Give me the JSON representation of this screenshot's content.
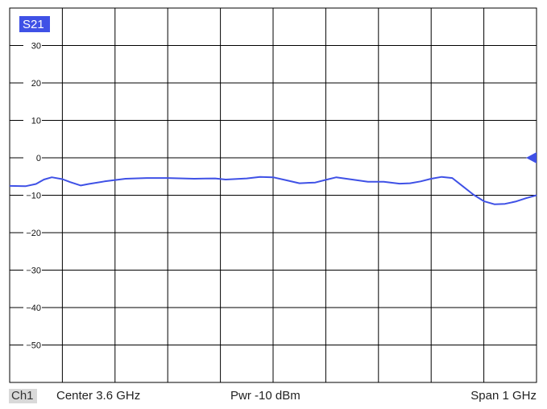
{
  "trace_label": "S21",
  "colors": {
    "trace": "#3f51e6",
    "trace_label_bg": "#3f51e6",
    "trace_label_fg": "#ffffff",
    "grid": "#000000",
    "background": "#ffffff"
  },
  "footer": {
    "channel": "Ch1",
    "center": "Center  3.6 GHz",
    "power": "Pwr  -10 dBm",
    "span": "Span  1 GHz"
  },
  "chart_data": {
    "type": "line",
    "x_unit": "GHz",
    "y_unit": "dB",
    "xlim": [
      3.1,
      4.1
    ],
    "ylim": [
      -60,
      40
    ],
    "y_ticks": [
      30,
      20,
      10,
      0,
      -10,
      -20,
      -30,
      -40,
      -50
    ],
    "reference_level": 0,
    "grid": true,
    "series": [
      {
        "name": "S21",
        "x": [
          3.1,
          3.13,
          3.15,
          3.165,
          3.18,
          3.2,
          3.215,
          3.235,
          3.25,
          3.28,
          3.32,
          3.36,
          3.4,
          3.45,
          3.49,
          3.51,
          3.55,
          3.575,
          3.6,
          3.625,
          3.65,
          3.68,
          3.7,
          3.72,
          3.75,
          3.78,
          3.81,
          3.84,
          3.86,
          3.88,
          3.9,
          3.92,
          3.94,
          3.96,
          3.98,
          4.0,
          4.02,
          4.04,
          4.06,
          4.08,
          4.1
        ],
        "y": [
          -7.5,
          -7.6,
          -7.0,
          -5.8,
          -5.2,
          -5.7,
          -6.5,
          -7.4,
          -7.0,
          -6.3,
          -5.6,
          -5.4,
          -5.4,
          -5.6,
          -5.5,
          -5.8,
          -5.5,
          -5.1,
          -5.2,
          -6.0,
          -6.8,
          -6.6,
          -5.9,
          -5.2,
          -5.8,
          -6.4,
          -6.4,
          -6.9,
          -6.8,
          -6.3,
          -5.6,
          -5.1,
          -5.4,
          -7.6,
          -9.8,
          -11.6,
          -12.4,
          -12.3,
          -11.7,
          -10.8,
          -10.0
        ]
      }
    ]
  }
}
